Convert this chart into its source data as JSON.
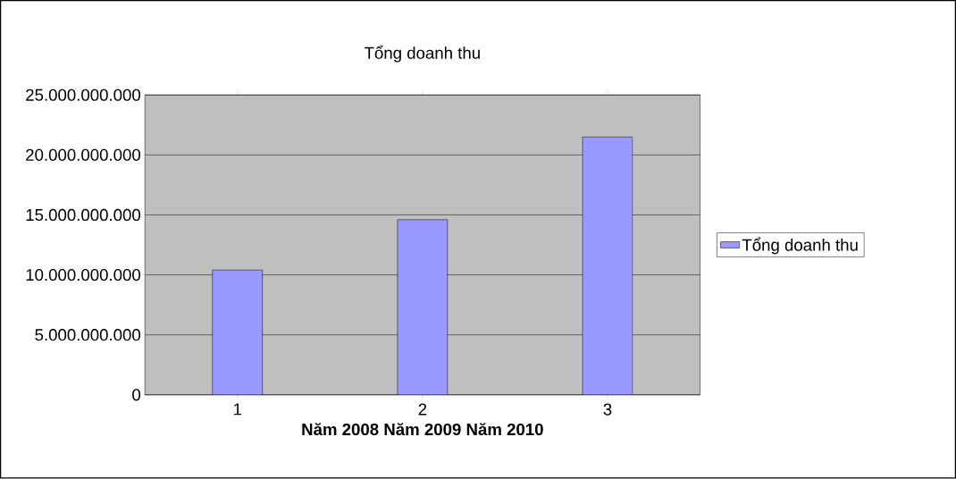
{
  "chart_data": {
    "type": "bar",
    "title": "Tổng doanh thu",
    "xlabel": "Năm 2008 Năm 2009 Năm 2010",
    "categories": [
      "1",
      "2",
      "3"
    ],
    "series": [
      {
        "name": "Tổng doanh thu",
        "color": "#9999ff",
        "values": [
          10400000000,
          14600000000,
          21500000000
        ]
      }
    ],
    "ylim": [
      0,
      25000000000
    ],
    "yticks": [
      {
        "value": 0,
        "label": "0"
      },
      {
        "value": 5000000000,
        "label": "5.000.000.000"
      },
      {
        "value": 10000000000,
        "label": "10.000.000.000"
      },
      {
        "value": 15000000000,
        "label": "15.000.000.000"
      },
      {
        "value": 20000000000,
        "label": "20.000.000.000"
      },
      {
        "value": 25000000000,
        "label": "25.000.000.000"
      }
    ],
    "grid": "y",
    "legend": "right"
  }
}
